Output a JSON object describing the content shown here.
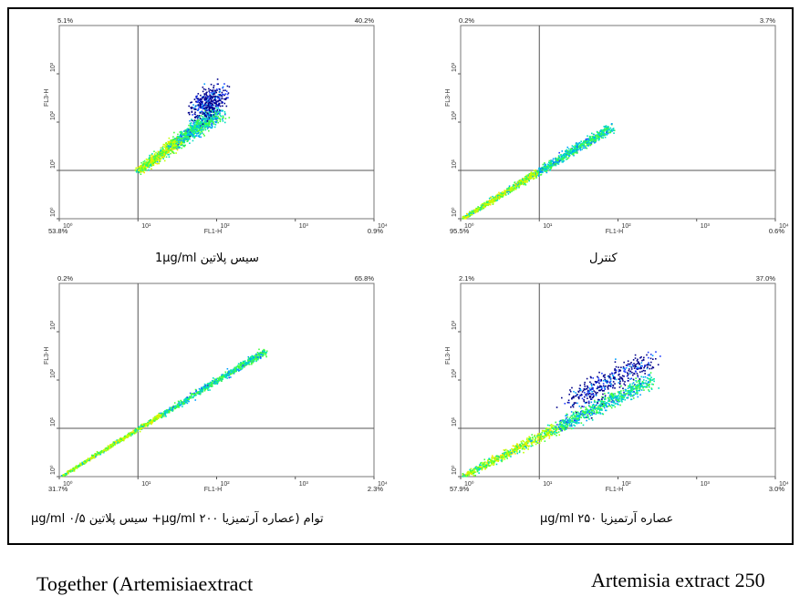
{
  "chart_data": [
    {
      "type": "scatter",
      "panel": "top-left",
      "caption_bold": "1µg/ml",
      "caption_text": "سیس پلاتین ",
      "xlabel": "FL1-H",
      "ylabel": "FL3-H",
      "x_ticks": [
        "10⁰",
        "10¹",
        "10²",
        "10³",
        "10⁴"
      ],
      "y_ticks": [
        "10⁰",
        "10¹",
        "10²",
        "10³"
      ],
      "quadrants": {
        "upper_left": "5.1%",
        "upper_right": "40.2%",
        "lower_left": "53.8%",
        "lower_right": "0.9%"
      },
      "population": {
        "start": [
          1.0,
          1.0
        ],
        "end": [
          2.0,
          2.2
        ],
        "spread": 0.22,
        "upper_cluster": true
      }
    },
    {
      "type": "scatter",
      "panel": "top-right",
      "caption_bold": "",
      "caption_text": "کنترل",
      "xlabel": "FL1-H",
      "ylabel": "FL3-H",
      "x_ticks": [
        "10⁰",
        "10¹",
        "10²",
        "10³",
        "10⁴"
      ],
      "y_ticks": [
        "10⁰",
        "10¹",
        "10²",
        "10³"
      ],
      "quadrants": {
        "upper_left": "0.2%",
        "upper_right": "3.7%",
        "lower_left": "95.5%",
        "lower_right": "0.6%"
      },
      "population": {
        "start": [
          0.0,
          0.0
        ],
        "end": [
          1.9,
          1.9
        ],
        "spread": 0.12,
        "upper_cluster": false
      }
    },
    {
      "type": "scatter",
      "panel": "bottom-left",
      "caption_bold": "µg/ml",
      "caption_text": "توام (عصاره آرتمیزیا µg/ml ۲۰۰+ سیس پلاتین µg/ml ۰/۵)",
      "xlabel": "FL1-H",
      "ylabel": "FL3-H",
      "x_ticks": [
        "10⁰",
        "10¹",
        "10²",
        "10³",
        "10⁴"
      ],
      "y_ticks": [
        "10⁰",
        "10¹",
        "10²",
        "10³"
      ],
      "quadrants": {
        "upper_left": "0.2%",
        "upper_right": "65.8%",
        "lower_left": "31.7%",
        "lower_right": "2.3%"
      },
      "population": {
        "start": [
          0.0,
          0.0
        ],
        "end": [
          2.6,
          2.6
        ],
        "spread": 0.08,
        "upper_cluster": false
      }
    },
    {
      "type": "scatter",
      "panel": "bottom-right",
      "caption_bold": "µg/ml",
      "caption_text": "عصاره آرتمیزیا µg/ml ۲۵۰",
      "xlabel": "FL1-H",
      "ylabel": "FL3-H",
      "x_ticks": [
        "10⁰",
        "10¹",
        "10²",
        "10³",
        "10⁴"
      ],
      "y_ticks": [
        "10⁰",
        "10¹",
        "10²",
        "10³"
      ],
      "quadrants": {
        "upper_left": "2.1%",
        "upper_right": "37.0%",
        "lower_left": "57.9%",
        "lower_right": "3.0%"
      },
      "population": {
        "start": [
          0.0,
          0.0
        ],
        "end": [
          2.4,
          2.0
        ],
        "spread": 0.2,
        "upper_cluster": true
      }
    }
  ],
  "captions": {
    "top_left": "سیس پلاتین  1µg/ml",
    "top_right": "کنترل",
    "bottom_left": "توام (عصاره آرتمیزیا µg/ml  ۲۰۰+ سیس پلاتین  µg/ml ۰/۵",
    "bottom_right": "عصاره آرتمیزیا µg/ml ۲۵۰"
  },
  "bottom_notes": {
    "left": "Together (Artemisiaextract",
    "right": "Artemisia extract 250"
  }
}
